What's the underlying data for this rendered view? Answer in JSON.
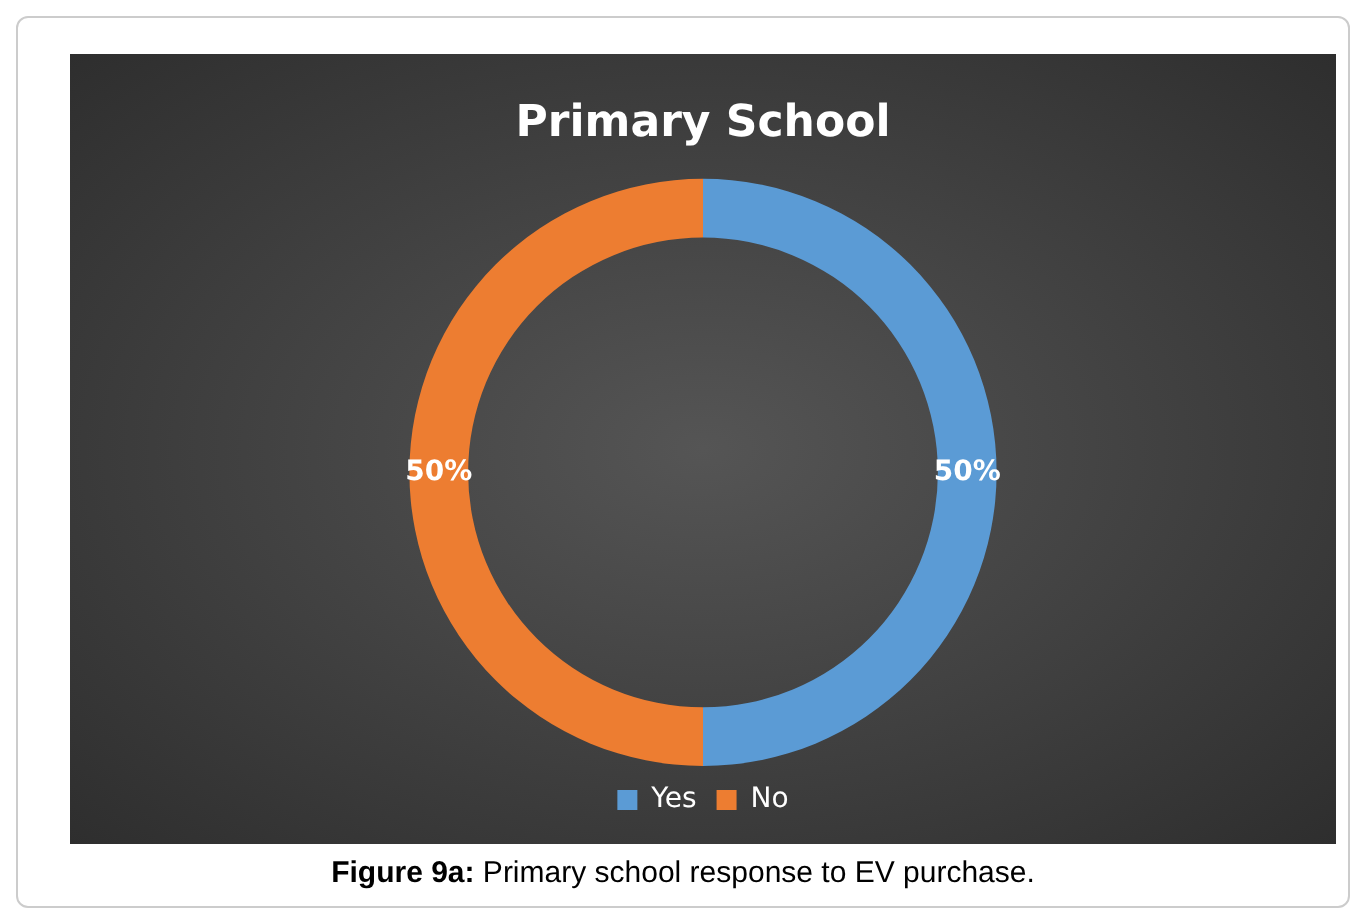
{
  "chart_data": {
    "type": "donut",
    "title": "Primary School",
    "categories": [
      "Yes",
      "No"
    ],
    "values": [
      50,
      50
    ],
    "colors": [
      "#5b9bd5",
      "#ed7d31"
    ],
    "value_labels": [
      "50%",
      "50%"
    ],
    "legend": "bottom",
    "annotations": [
      "Figure 9a: Primary school response to EV purchase."
    ]
  }
}
